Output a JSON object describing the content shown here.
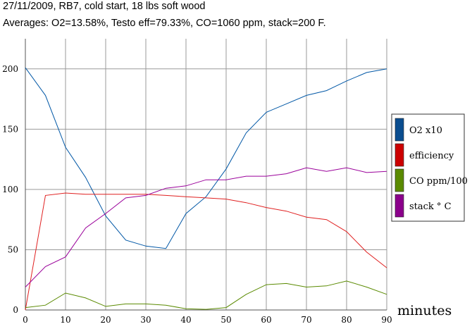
{
  "title": "27/11/2009, RB7, cold start, 18 lbs soft wood",
  "subtitle": "Averages: O2=13.58%, Testo eff=79.33%, CO=1060 ppm, stack=200 F.",
  "chart_data": {
    "type": "line",
    "xlabel": "minutes",
    "ylabel": "",
    "xlim": [
      0,
      90
    ],
    "ylim": [
      0,
      225
    ],
    "x_ticks": [
      0,
      10,
      20,
      30,
      40,
      50,
      60,
      70,
      80,
      90
    ],
    "y_ticks": [
      0,
      50,
      100,
      150,
      200
    ],
    "grid": true,
    "legend_position": "right",
    "x": [
      0,
      5,
      10,
      15,
      20,
      25,
      30,
      35,
      40,
      45,
      50,
      55,
      60,
      65,
      70,
      75,
      80,
      85,
      90
    ],
    "series": [
      {
        "name": "O2 x10",
        "color": "#0057a6",
        "values": [
          201,
          178,
          135,
          110,
          78,
          58,
          53,
          51,
          80,
          94,
          117,
          147,
          164,
          171,
          178,
          182,
          190,
          197,
          200
        ]
      },
      {
        "name": "efficiency",
        "color": "#e02020",
        "values": [
          0,
          95,
          97,
          96,
          96,
          96,
          96,
          95,
          94,
          93,
          92,
          89,
          85,
          82,
          77,
          75,
          65,
          48,
          35
        ]
      },
      {
        "name": "CO ppm/100",
        "color": "#5a8a00",
        "values": [
          2,
          4,
          14,
          10,
          3,
          5,
          5,
          4,
          1,
          0.5,
          2,
          13,
          21,
          22,
          19,
          20,
          24,
          19,
          13
        ]
      },
      {
        "name": "stack ° C",
        "color": "#9a009a",
        "values": [
          19,
          36,
          44,
          68,
          80,
          93,
          95,
          101,
          103,
          108,
          108,
          111,
          111,
          113,
          118,
          115,
          118,
          114,
          115
        ]
      }
    ],
    "legend_swatch_colors": [
      "#0a4d8f",
      "#cc0000",
      "#5a8a00",
      "#8b008b"
    ]
  }
}
